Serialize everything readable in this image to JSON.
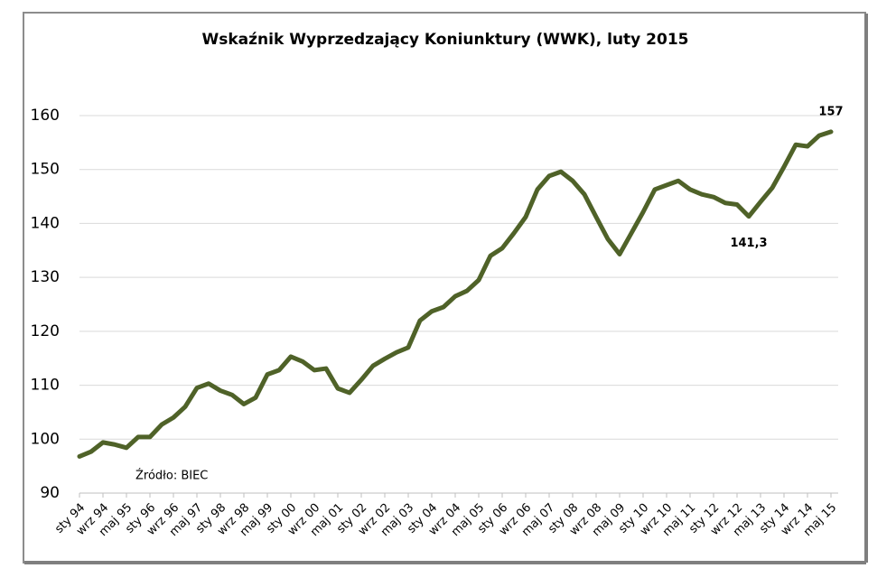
{
  "chart_data": {
    "type": "line",
    "title": "Wskaźnik Wyprzedzający Koniunktury (WWK), luty 2015",
    "source": "Źródło: BIEC",
    "categories": [
      "sty 94",
      null,
      "wrz 94",
      null,
      "maj 95",
      null,
      "sty 96",
      null,
      "wrz 96",
      null,
      "maj 97",
      null,
      "sty 98",
      null,
      "wrz 98",
      null,
      "maj 99",
      null,
      "sty 00",
      null,
      "wrz 00",
      null,
      "maj 01",
      null,
      "sty 02",
      null,
      "wrz 02",
      null,
      "maj 03",
      null,
      "sty 04",
      null,
      "wrz 04",
      null,
      "maj 05",
      null,
      "sty 06",
      null,
      "wrz 06",
      null,
      "maj 07",
      null,
      "sty 08",
      null,
      "wrz 08",
      null,
      "maj 09",
      null,
      "sty 10",
      null,
      "wrz 10",
      null,
      "maj 11",
      null,
      "sty 12",
      null,
      "wrz 12",
      null,
      "maj 13",
      null,
      "sty 14",
      null,
      "wrz 14",
      null,
      "maj 15"
    ],
    "series": [
      {
        "color": "#4f6228",
        "values": [
          96.8,
          97.7,
          99.4,
          99,
          98.4,
          100.4,
          100.4,
          102.7,
          104,
          106,
          109.5,
          110.3,
          109,
          108.2,
          106.5,
          107.7,
          112,
          112.8,
          115.3,
          114.4,
          112.8,
          113.1,
          109.4,
          108.6,
          111,
          113.6,
          114.9,
          116.1,
          117,
          122,
          123.7,
          124.5,
          126.5,
          127.5,
          129.5,
          134,
          135.4,
          138.2,
          141.2,
          146.3,
          148.8,
          149.6,
          147.9,
          145.4,
          141.2,
          137.1,
          134.3,
          138.2,
          142.1,
          146.3,
          147.1,
          147.9,
          146.3,
          145.4,
          144.9,
          143.8,
          143.5,
          141.3,
          144,
          146.6,
          150.5,
          154.6,
          154.3,
          156.3,
          157
        ],
        "value_labels": [
          null,
          null,
          null,
          null,
          null,
          null,
          null,
          null,
          null,
          null,
          null,
          null,
          null,
          null,
          null,
          null,
          null,
          null,
          null,
          null,
          null,
          null,
          null,
          null,
          null,
          null,
          null,
          null,
          null,
          null,
          null,
          null,
          null,
          null,
          null,
          null,
          null,
          null,
          null,
          null,
          null,
          null,
          null,
          null,
          null,
          null,
          null,
          null,
          null,
          null,
          null,
          null,
          null,
          null,
          null,
          null,
          null,
          "141,3",
          null,
          null,
          null,
          null,
          null,
          null,
          "157"
        ]
      }
    ],
    "ylim": [
      90,
      160
    ],
    "yticks": [
      90,
      100,
      110,
      120,
      130,
      140,
      150,
      160
    ],
    "grid": true
  }
}
